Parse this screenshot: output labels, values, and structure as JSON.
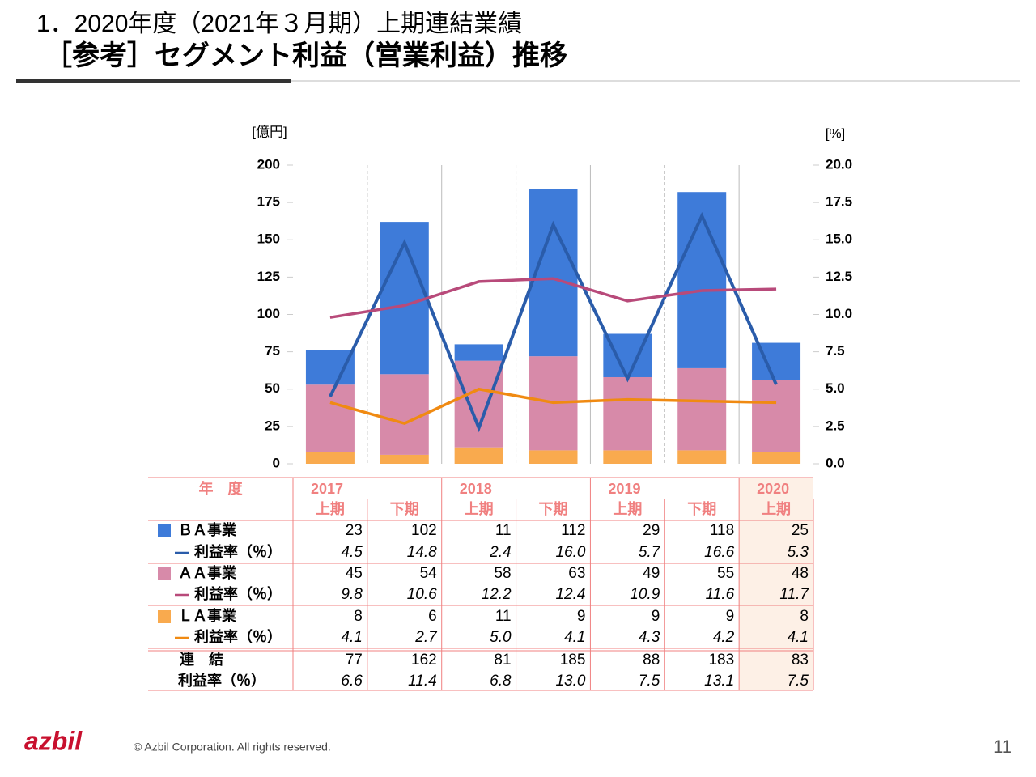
{
  "header": {
    "title": "1．2020年度（2021年３月期）上期連結業績",
    "subtitle": "［参考］セグメント利益（営業利益）推移"
  },
  "chart_data": {
    "type": "bar",
    "stacked": true,
    "y_label": "[億円]",
    "y2_label": "[%]",
    "ylim": [
      0,
      200
    ],
    "yticks": [
      0,
      25,
      50,
      75,
      100,
      125,
      150,
      175,
      200
    ],
    "y2lim": [
      0,
      20
    ],
    "y2ticks": [
      {
        "value": 0,
        "label": "0.0"
      },
      2.5,
      {
        "value": 5,
        "label": "5.0"
      },
      7.5,
      {
        "value": 10,
        "label": "10.0"
      },
      12.5,
      {
        "value": 15,
        "label": "15.0"
      },
      17.5,
      {
        "value": 20,
        "label": "20.0"
      }
    ],
    "table_header": "年　度",
    "years": [
      "2017",
      "2018",
      "2019",
      "2020"
    ],
    "categories": [
      "上期",
      "下期",
      "上期",
      "下期",
      "上期",
      "下期",
      "上期"
    ],
    "series": [
      {
        "name": "ＢＡ事業",
        "color": "#3e7bd9",
        "values": [
          23,
          102,
          11,
          112,
          29,
          118,
          25
        ]
      },
      {
        "name": "利益率（％）",
        "axis": "y2",
        "color": "#2a5caa",
        "values": [
          4.5,
          14.8,
          2.4,
          16.0,
          5.7,
          16.6,
          5.3
        ],
        "value_labels": [
          "4.5",
          "14.8",
          "2.4",
          "16.0",
          "5.7",
          "16.6",
          "5.3"
        ]
      },
      {
        "name": "ＡＡ事業",
        "color": "#d78aa9",
        "values": [
          45,
          54,
          58,
          63,
          49,
          55,
          48
        ]
      },
      {
        "name": "利益率（％）",
        "axis": "y2",
        "color": "#b84a7a",
        "values": [
          9.8,
          10.6,
          12.2,
          12.4,
          10.9,
          11.6,
          11.7
        ],
        "value_labels": [
          "9.8",
          "10.6",
          "12.2",
          "12.4",
          "10.9",
          "11.6",
          "11.7"
        ]
      },
      {
        "name": "ＬＡ事業",
        "color": "#f9aa4e",
        "values": [
          8,
          6,
          11,
          9,
          9,
          9,
          8
        ]
      },
      {
        "name": "利益率（％）",
        "axis": "y2",
        "color": "#f08a12",
        "values": [
          4.1,
          2.7,
          5.0,
          4.1,
          4.3,
          4.2,
          4.1
        ],
        "value_labels": [
          "4.1",
          "2.7",
          "5.0",
          "4.1",
          "4.3",
          "4.2",
          "4.1"
        ]
      }
    ],
    "total": {
      "name": "連　結",
      "values": [
        77,
        162,
        81,
        185,
        88,
        183,
        83
      ]
    },
    "total_rate": {
      "name": "利益率（％）",
      "values": [
        6.6,
        11.4,
        6.8,
        13.0,
        7.5,
        13.1,
        7.5
      ],
      "value_labels": [
        "6.6",
        "11.4",
        "6.8",
        "13.0",
        "7.5",
        "13.1",
        "7.5"
      ]
    }
  },
  "footer": {
    "logo": "azbil",
    "copyright": "© Azbil Corporation. All rights reserved.",
    "page": "11"
  }
}
